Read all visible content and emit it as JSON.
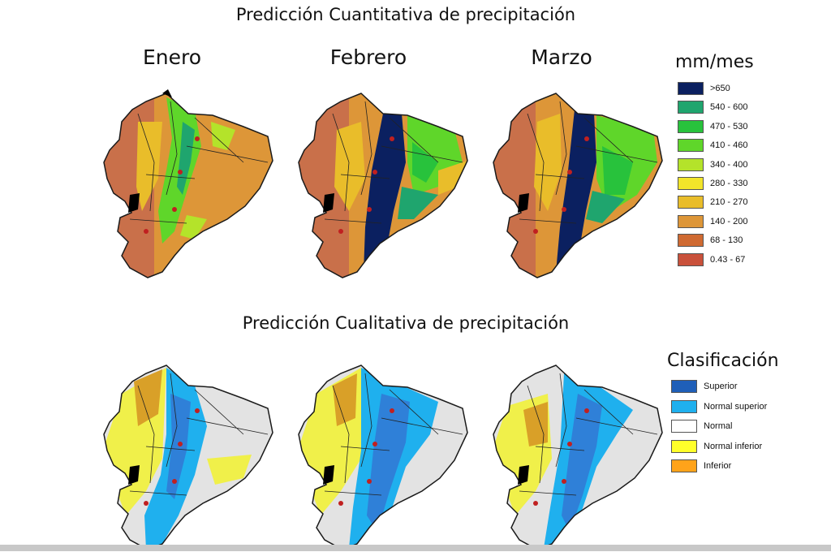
{
  "quantitative": {
    "title": "Predicción Cuantitativa de precipitación",
    "months": [
      "Enero",
      "Febrero",
      "Marzo"
    ],
    "legend_title": "mm/mes",
    "legend": [
      {
        "label": ">650",
        "color": "#0b2060"
      },
      {
        "label": "540 - 600",
        "color": "#1fa56e"
      },
      {
        "label": "470 - 530",
        "color": "#28c23c"
      },
      {
        "label": "410 - 460",
        "color": "#5fd62a"
      },
      {
        "label": "340 - 400",
        "color": "#b4e32a"
      },
      {
        "label": "280 - 330",
        "color": "#f2e52a"
      },
      {
        "label": "210 - 270",
        "color": "#e9bd2a"
      },
      {
        "label": "140 - 200",
        "color": "#dd9638"
      },
      {
        "label": "68 - 130",
        "color": "#cf6a32"
      },
      {
        "label": "0.43 - 67",
        "color": "#c9513b"
      }
    ]
  },
  "qualitative": {
    "title": "Predicción Cualitativa de precipitación",
    "legend_title": "Clasificación",
    "legend": [
      {
        "label": "Superior",
        "color": "#1f5fb8"
      },
      {
        "label": "Normal superior",
        "color": "#1fb0ee"
      },
      {
        "label": "Normal",
        "color": "#ffffff"
      },
      {
        "label": "Normal inferior",
        "color": "#ffff2a"
      },
      {
        "label": "Inferior",
        "color": "#ffa31a"
      }
    ]
  }
}
